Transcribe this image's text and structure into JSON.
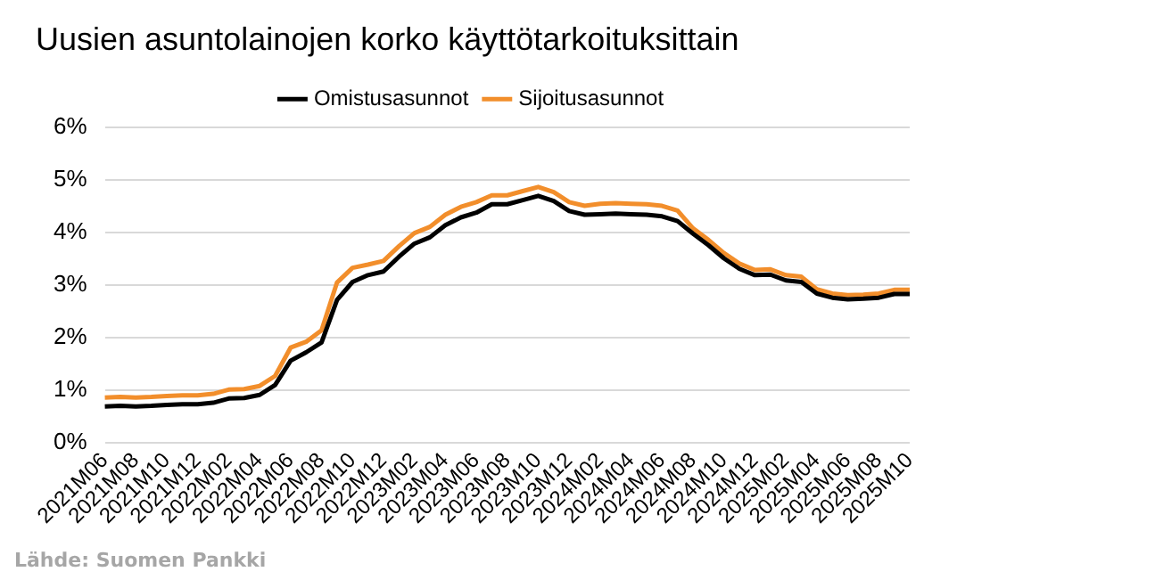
{
  "chart_data": {
    "type": "line",
    "title": "Uusien asuntolainojen korko käyttötarkoituksittain",
    "categories": [
      "2021M06",
      null,
      "2021M08",
      null,
      "2021M10",
      null,
      "2021M12",
      null,
      "2022M02",
      null,
      "2022M04",
      null,
      "2022M06",
      null,
      "2022M08",
      null,
      "2022M10",
      null,
      "2022M12",
      null,
      "2023M02",
      null,
      "2023M04",
      null,
      "2023M06",
      null,
      "2023M08",
      null,
      "2023M10",
      null,
      "2023M12",
      null,
      "2024M02",
      null,
      "2024M04",
      null,
      "2024M06",
      null,
      "2024M08",
      null,
      "2024M10",
      null,
      "2024M12",
      null,
      "2025M02",
      null,
      "2025M04",
      null,
      "2025M06",
      null,
      "2025M08",
      null,
      "2025M10"
    ],
    "series": [
      {
        "name": "Omistusasunnot",
        "color": "#000000",
        "values": [
          0.69,
          0.7,
          0.69,
          0.7,
          0.72,
          0.73,
          0.73,
          0.76,
          0.84,
          0.85,
          0.91,
          1.1,
          1.56,
          1.72,
          1.91,
          2.72,
          3.06,
          3.19,
          3.26,
          3.54,
          3.79,
          3.91,
          4.14,
          4.29,
          4.38,
          4.54,
          4.54,
          4.62,
          4.7,
          4.6,
          4.41,
          4.34,
          4.35,
          4.36,
          4.35,
          4.34,
          4.31,
          4.22,
          3.98,
          3.76,
          3.51,
          3.31,
          3.19,
          3.2,
          3.09,
          3.06,
          2.84,
          2.76,
          2.73,
          2.74,
          2.76,
          2.83,
          2.83
        ]
      },
      {
        "name": "Sijoitusasunnot",
        "color": "#f28e2b",
        "values": [
          0.86,
          0.87,
          0.86,
          0.87,
          0.89,
          0.9,
          0.9,
          0.93,
          1.01,
          1.02,
          1.08,
          1.27,
          1.81,
          1.92,
          2.14,
          3.05,
          3.33,
          3.39,
          3.46,
          3.74,
          3.99,
          4.11,
          4.34,
          4.49,
          4.58,
          4.71,
          4.71,
          4.79,
          4.87,
          4.77,
          4.58,
          4.51,
          4.55,
          4.56,
          4.55,
          4.54,
          4.51,
          4.42,
          4.08,
          3.86,
          3.61,
          3.41,
          3.29,
          3.3,
          3.19,
          3.16,
          2.92,
          2.84,
          2.81,
          2.82,
          2.84,
          2.91,
          2.91
        ]
      }
    ],
    "ylim": [
      0,
      6
    ],
    "yticks": [
      {
        "value": 0,
        "label": "0%"
      },
      {
        "value": 1,
        "label": "1%"
      },
      {
        "value": 2,
        "label": "2%"
      },
      {
        "value": 3,
        "label": "3%"
      },
      {
        "value": 4,
        "label": "4%"
      },
      {
        "value": 5,
        "label": "5%"
      },
      {
        "value": 6,
        "label": "6%"
      }
    ],
    "grid": "y",
    "legend": "top",
    "marker": "none",
    "line_style": "solid",
    "annotations": [
      "Lähde: Suomen Pankki"
    ]
  }
}
